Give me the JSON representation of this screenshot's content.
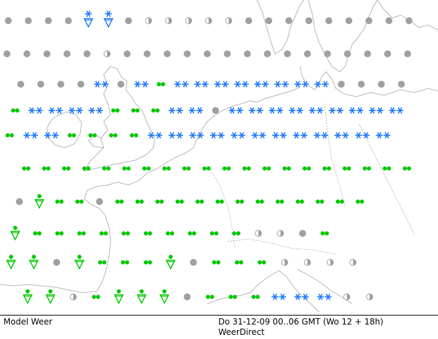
{
  "map": {
    "colors": {
      "background": "#ffffff",
      "coastline": "#b4b4b4",
      "overcast": "#a0a0a0",
      "rain": "#00c800",
      "snow": "#1e78ff"
    },
    "symbol_legend": {
      "overcast": "gray dot",
      "partly": "half-filled circle",
      "rain": "green dots",
      "snow": "blue asterisks",
      "shower": "green triangle with drop"
    },
    "stations": [
      {
        "row": 0,
        "symbols": [
          "overcast",
          "overcast",
          "overcast",
          "overcast",
          "snow-shower",
          "snow-shower",
          "overcast",
          "partly",
          "partly",
          "partly",
          "partly",
          "partly",
          "overcast",
          "overcast",
          "overcast",
          "overcast",
          "overcast",
          "overcast",
          "overcast",
          "overcast",
          "overcast"
        ]
      },
      {
        "row": 1,
        "symbols": [
          "overcast",
          "overcast",
          "overcast",
          "overcast",
          "overcast",
          "partly",
          "overcast",
          "overcast",
          "overcast",
          "overcast",
          "overcast",
          "overcast",
          "overcast",
          "overcast",
          "overcast",
          "overcast",
          "overcast",
          "overcast",
          "overcast",
          "overcast",
          "overcast"
        ]
      },
      {
        "row": 2,
        "symbols": [
          "overcast",
          "overcast",
          "overcast",
          "overcast",
          "snow",
          "overcast",
          "snow",
          "rain",
          "snow",
          "snow",
          "snow",
          "snow",
          "snow",
          "snow",
          "snow",
          "snow",
          "overcast",
          "overcast",
          "overcast",
          "overcast"
        ]
      },
      {
        "row": 3,
        "symbols": [
          "rain",
          "snow",
          "snow",
          "snow",
          "snow",
          "rain",
          "rain",
          "rain",
          "snow",
          "snow",
          "overcast",
          "snow",
          "snow",
          "snow",
          "snow",
          "snow",
          "snow",
          "snow",
          "snow",
          "snow"
        ]
      },
      {
        "row": 4,
        "symbols": [
          "rain",
          "snow",
          "snow",
          "rain",
          "rain",
          "rain",
          "rain",
          "snow",
          "snow",
          "snow",
          "snow",
          "snow",
          "snow",
          "snow",
          "snow",
          "snow",
          "snow",
          "snow",
          "snow"
        ]
      },
      {
        "row": 5,
        "symbols": [
          "rain",
          "rain",
          "rain",
          "rain",
          "rain",
          "rain",
          "rain",
          "rain",
          "rain",
          "rain",
          "rain",
          "rain",
          "rain",
          "rain",
          "rain",
          "rain",
          "rain",
          "rain",
          "rain",
          "rain"
        ]
      },
      {
        "row": 6,
        "symbols": [
          "overcast",
          "rain-shower",
          "rain",
          "rain",
          "overcast",
          "rain",
          "rain",
          "rain",
          "rain",
          "rain",
          "rain",
          "rain",
          "rain",
          "rain",
          "rain",
          "rain",
          "rain",
          "rain"
        ]
      },
      {
        "row": 7,
        "symbols": [
          "rain-shower",
          "rain",
          "rain",
          "rain",
          "rain",
          "rain",
          "rain",
          "rain",
          "rain",
          "rain",
          "rain",
          "partly",
          "partly",
          "overcast",
          "rain"
        ]
      },
      {
        "row": 8,
        "symbols": [
          "rain-shower",
          "rain-shower",
          "overcast",
          "rain-shower",
          "rain",
          "rain",
          "rain",
          "rain-shower",
          "overcast",
          "rain",
          "rain",
          "rain",
          "partly",
          "partly",
          "partly",
          "partly"
        ]
      },
      {
        "row": 9,
        "symbols": [
          "rain-shower",
          "rain-shower",
          "partly",
          "rain",
          "rain-shower",
          "rain-shower",
          "rain-shower",
          "overcast",
          "rain",
          "rain",
          "rain",
          "snow",
          "snow",
          "snow",
          "partly",
          "partly"
        ]
      }
    ]
  },
  "footer": {
    "model_label": "Model Weer",
    "time_label": "Do 31-12-09 00..06 GMT (Wo 12 + 18h)",
    "source_label": "WeerDirect"
  }
}
